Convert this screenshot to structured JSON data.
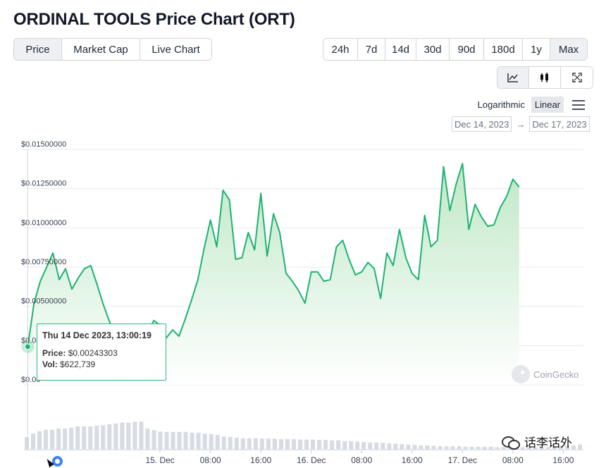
{
  "title": "ORDINAL TOOLS Price Chart (ORT)",
  "view_tabs": [
    {
      "label": "Price",
      "active": true
    },
    {
      "label": "Market Cap",
      "active": false
    },
    {
      "label": "Live Chart",
      "active": false
    }
  ],
  "range_tabs": [
    {
      "label": "24h",
      "active": false
    },
    {
      "label": "7d",
      "active": false
    },
    {
      "label": "14d",
      "active": false
    },
    {
      "label": "30d",
      "active": false
    },
    {
      "label": "90d",
      "active": false
    },
    {
      "label": "180d",
      "active": false
    },
    {
      "label": "1y",
      "active": false
    },
    {
      "label": "Max",
      "active": true
    }
  ],
  "chart_type_icons": [
    {
      "icon": "line-chart-icon",
      "active": true
    },
    {
      "icon": "candlestick-icon",
      "active": false
    },
    {
      "icon": "expand-icon",
      "active": false
    }
  ],
  "scale": {
    "logarithmic": "Logarithmic",
    "linear": "Linear",
    "active": "Linear"
  },
  "date_range": {
    "from": "Dec 14, 2023",
    "arrow": "→",
    "to": "Dec 17, 2023"
  },
  "tooltip": {
    "title": "Thu 14 Dec 2023, 13:00:19",
    "price_label": "Price:",
    "price_value": "$0.00243303",
    "vol_label": "Vol:",
    "vol_value": "$622,739"
  },
  "attribution": "CoinGecko",
  "watermark": "话李话外",
  "colors": {
    "line": "#1db371",
    "fill_top": "#bfe8c6",
    "fill_bottom": "#ffffff",
    "volume": "#d6dbe4",
    "grid": "#e6e8eb",
    "tooltip_border": "#2fb77e"
  },
  "chart_data": {
    "type": "area",
    "y_ticks": [
      "$0.01500000",
      "$0.01250000",
      "$0.01000000",
      "$0.00750000",
      "$0.00500000",
      "$0.00250000",
      "$0.00"
    ],
    "ylim": [
      0,
      0.015
    ],
    "x_ticks": [
      "15. Dec",
      "08:00",
      "16:00",
      "16. Dec",
      "08:00",
      "16:00",
      "17. Dec",
      "08:00",
      "16:00"
    ],
    "x_tick_hours": [
      11,
      19,
      27,
      35,
      43,
      51,
      59,
      67,
      75
    ],
    "xlim_hours": [
      -10.6,
      78.2
    ],
    "series": [
      {
        "points": [
          [
            -10,
            0.00243303
          ],
          [
            -9,
            0.0052
          ],
          [
            -8,
            0.0066
          ],
          [
            -7,
            0.0075
          ],
          [
            -6,
            0.0084
          ],
          [
            -5,
            0.0067
          ],
          [
            -4,
            0.0074
          ],
          [
            -3,
            0.0061
          ],
          [
            -2,
            0.0068
          ],
          [
            -1,
            0.0074
          ],
          [
            0,
            0.0076
          ],
          [
            1,
            0.0064
          ],
          [
            2,
            0.0051
          ],
          [
            3,
            0.004
          ],
          [
            4,
            0.003
          ],
          [
            5,
            0.0027
          ],
          [
            6,
            0.0036
          ],
          [
            7,
            0.0033
          ],
          [
            8,
            0.0026
          ],
          [
            9,
            0.0032
          ],
          [
            10,
            0.0041
          ],
          [
            11,
            0.0038
          ],
          [
            12,
            0.003
          ],
          [
            13,
            0.0035
          ],
          [
            14,
            0.0031
          ],
          [
            15,
            0.0042
          ],
          [
            16,
            0.0054
          ],
          [
            17,
            0.0067
          ],
          [
            18,
            0.0087
          ],
          [
            19,
            0.0105
          ],
          [
            20,
            0.0088
          ],
          [
            21,
            0.0124
          ],
          [
            22,
            0.0118
          ],
          [
            23,
            0.008
          ],
          [
            24,
            0.0081
          ],
          [
            25,
            0.0097
          ],
          [
            26,
            0.0086
          ],
          [
            27,
            0.0122
          ],
          [
            28,
            0.0082
          ],
          [
            29,
            0.0109
          ],
          [
            30,
            0.0097
          ],
          [
            31,
            0.0071
          ],
          [
            32,
            0.0066
          ],
          [
            33,
            0.006
          ],
          [
            34,
            0.0052
          ],
          [
            35,
            0.0072
          ],
          [
            36,
            0.0072
          ],
          [
            37,
            0.0066
          ],
          [
            38,
            0.0067
          ],
          [
            39,
            0.0088
          ],
          [
            40,
            0.0092
          ],
          [
            41,
            0.008
          ],
          [
            42,
            0.007
          ],
          [
            43,
            0.0072
          ],
          [
            44,
            0.0078
          ],
          [
            45,
            0.0074
          ],
          [
            46,
            0.0055
          ],
          [
            47,
            0.0084
          ],
          [
            48,
            0.0076
          ],
          [
            49,
            0.0099
          ],
          [
            50,
            0.0081
          ],
          [
            51,
            0.0071
          ],
          [
            52,
            0.0067
          ],
          [
            53,
            0.0108
          ],
          [
            54,
            0.0088
          ],
          [
            55,
            0.0092
          ],
          [
            56,
            0.0139
          ],
          [
            57,
            0.0111
          ],
          [
            58,
            0.0128
          ],
          [
            59,
            0.0141
          ],
          [
            60,
            0.0099
          ],
          [
            61,
            0.0115
          ],
          [
            62,
            0.0107
          ],
          [
            63,
            0.0101
          ],
          [
            64,
            0.0102
          ],
          [
            65,
            0.0113
          ],
          [
            66,
            0.012
          ],
          [
            67,
            0.0131
          ],
          [
            68,
            0.0126
          ]
        ]
      }
    ],
    "volume": [
      0.3,
      0.38,
      0.44,
      0.47,
      0.47,
      0.5,
      0.5,
      0.52,
      0.55,
      0.55,
      0.55,
      0.57,
      0.58,
      0.6,
      0.62,
      0.64,
      0.64,
      0.66,
      0.66,
      0.5,
      0.46,
      0.43,
      0.42,
      0.42,
      0.42,
      0.42,
      0.4,
      0.4,
      0.38,
      0.37,
      0.35,
      0.31,
      0.3,
      0.28,
      0.27,
      0.27,
      0.27,
      0.26,
      0.26,
      0.26,
      0.25,
      0.25,
      0.25,
      0.24,
      0.24,
      0.24,
      0.23,
      0.23,
      0.22,
      0.22,
      0.2,
      0.2,
      0.19,
      0.18,
      0.17,
      0.17,
      0.16,
      0.15,
      0.14,
      0.13,
      0.12,
      0.11,
      0.1,
      0.1,
      0.09,
      0.08,
      0.08,
      0.08,
      0.08,
      0.07,
      0.07,
      0.07,
      0.07,
      0.07,
      0.06,
      0.06,
      0.06,
      0.06,
      0.06,
      0.06,
      0.05,
      0.06,
      0.06,
      0.08,
      0.09,
      0.1,
      0.1,
      0.12
    ]
  }
}
